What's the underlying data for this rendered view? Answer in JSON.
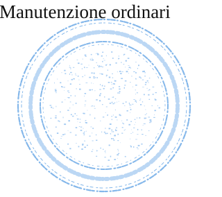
{
  "heading": "Manutenzione ordinari"
}
